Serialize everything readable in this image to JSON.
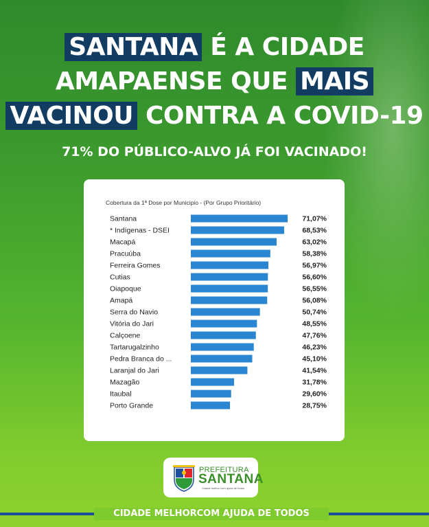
{
  "headline": {
    "line1_highlight": "SANTANA",
    "line1_rest": " É A CIDADE",
    "line2_text": "AMAPAENSE QUE ",
    "line2_highlight": "MAIS",
    "line3_highlight": "VACINOU",
    "line3_rest": " CONTRA A COVID-19"
  },
  "subheadline": "71% DO PÚBLICO-ALVO JÁ FOI VACINADO!",
  "colors": {
    "bar": "#2a86d1",
    "highlight_box": "#123c62",
    "brand_green": "#3a8e2a"
  },
  "chart_data": {
    "type": "bar",
    "orientation": "horizontal",
    "title": "Cobertura da 1ª Dose por Municipio - (Por Grupo Prioritário)",
    "categories": [
      "Santana",
      "* Indígenas - DSEI",
      "Macapá",
      "Pracuúba",
      "Ferreira Gomes",
      "Cutias",
      "Oiapoque",
      "Amapá",
      "Serra do Navio",
      "Vitória do Jari",
      "Calçoene",
      "Tartarugalzinho",
      "Pedra Branca do ...",
      "Laranjal do Jari",
      "Mazagão",
      "Itaubal",
      "Porto Grande"
    ],
    "values": [
      71.07,
      68.53,
      63.02,
      58.38,
      56.97,
      56.6,
      56.55,
      56.08,
      50.74,
      48.55,
      47.76,
      46.23,
      45.1,
      41.54,
      31.78,
      29.6,
      28.75
    ],
    "labels": [
      "71,07%",
      "68,53%",
      "63,02%",
      "58,38%",
      "56,97%",
      "56,60%",
      "56,55%",
      "56,08%",
      "50,74%",
      "48,55%",
      "47,76%",
      "46,23%",
      "45,10%",
      "41,54%",
      "31,78%",
      "29,60%",
      "28,75%"
    ],
    "xlim": [
      0,
      71.07
    ],
    "grid": false,
    "legend": "none"
  },
  "logo": {
    "line1": "PREFEITURA",
    "line2": "SANTANA",
    "tagline": "Cidade melhor com ajuda de todos"
  },
  "footer": "CIDADE MELHORCOM AJUDA DE TODOS"
}
